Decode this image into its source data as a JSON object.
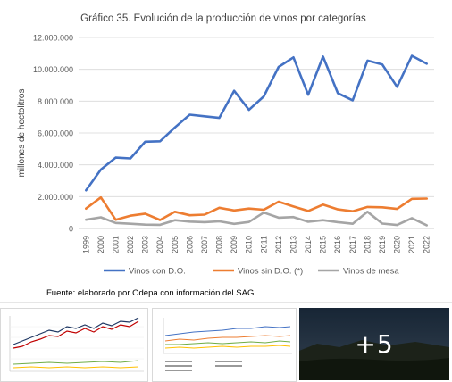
{
  "chart_data": {
    "type": "line",
    "title": "Gráfico 35. Evolución de la producción de vinos por categorías",
    "ylabel": "millones de hectolitros",
    "xlabel": "",
    "x": [
      "1999",
      "2000",
      "2001",
      "2002",
      "2003",
      "2004",
      "2005",
      "2006",
      "2007",
      "2008",
      "2009",
      "2010",
      "2011",
      "2012",
      "2013",
      "2014",
      "2015",
      "2016",
      "2017",
      "2018",
      "2019",
      "2020",
      "2021",
      "2022"
    ],
    "y_ticks": [
      "0",
      "2.000.000",
      "4.000.000",
      "6.000.000",
      "8.000.000",
      "10.000.000",
      "12.000.000"
    ],
    "ylim": [
      0,
      12000000
    ],
    "grid": true,
    "legend_position": "bottom",
    "series": [
      {
        "name": "Vinos con D.O.",
        "color": "#4472c4",
        "values": [
          2400000,
          3700000,
          4450000,
          4400000,
          5450000,
          5480000,
          6350000,
          7150000,
          7050000,
          6950000,
          8650000,
          7450000,
          8300000,
          10150000,
          10750000,
          8400000,
          10800000,
          8500000,
          8050000,
          10550000,
          10300000,
          8900000,
          10850000,
          10350000
        ]
      },
      {
        "name": "Vinos sin D.O. (*)",
        "color": "#ed7d31",
        "values": [
          1250000,
          1950000,
          550000,
          800000,
          930000,
          530000,
          1050000,
          830000,
          870000,
          1300000,
          1130000,
          1250000,
          1180000,
          1680000,
          1380000,
          1100000,
          1500000,
          1200000,
          1080000,
          1350000,
          1330000,
          1230000,
          1860000,
          1880000
        ]
      },
      {
        "name": "Vinos de mesa",
        "color": "#a5a5a5",
        "values": [
          550000,
          700000,
          350000,
          300000,
          240000,
          230000,
          520000,
          430000,
          400000,
          450000,
          290000,
          410000,
          1000000,
          680000,
          720000,
          420000,
          520000,
          400000,
          300000,
          1050000,
          310000,
          220000,
          650000,
          200000
        ]
      }
    ]
  },
  "source_note": "Fuente: elaborado por Odepa con información del SAG.",
  "thumbnails": {
    "more_count": "+5",
    "thumb_1_colors": [
      "#1f3864",
      "#c00000",
      "#70ad47",
      "#ffc000"
    ],
    "thumb_2_colors": [
      "#4472c4",
      "#ed7d31",
      "#70ad47",
      "#ffc000",
      "#5b9bd5"
    ]
  }
}
